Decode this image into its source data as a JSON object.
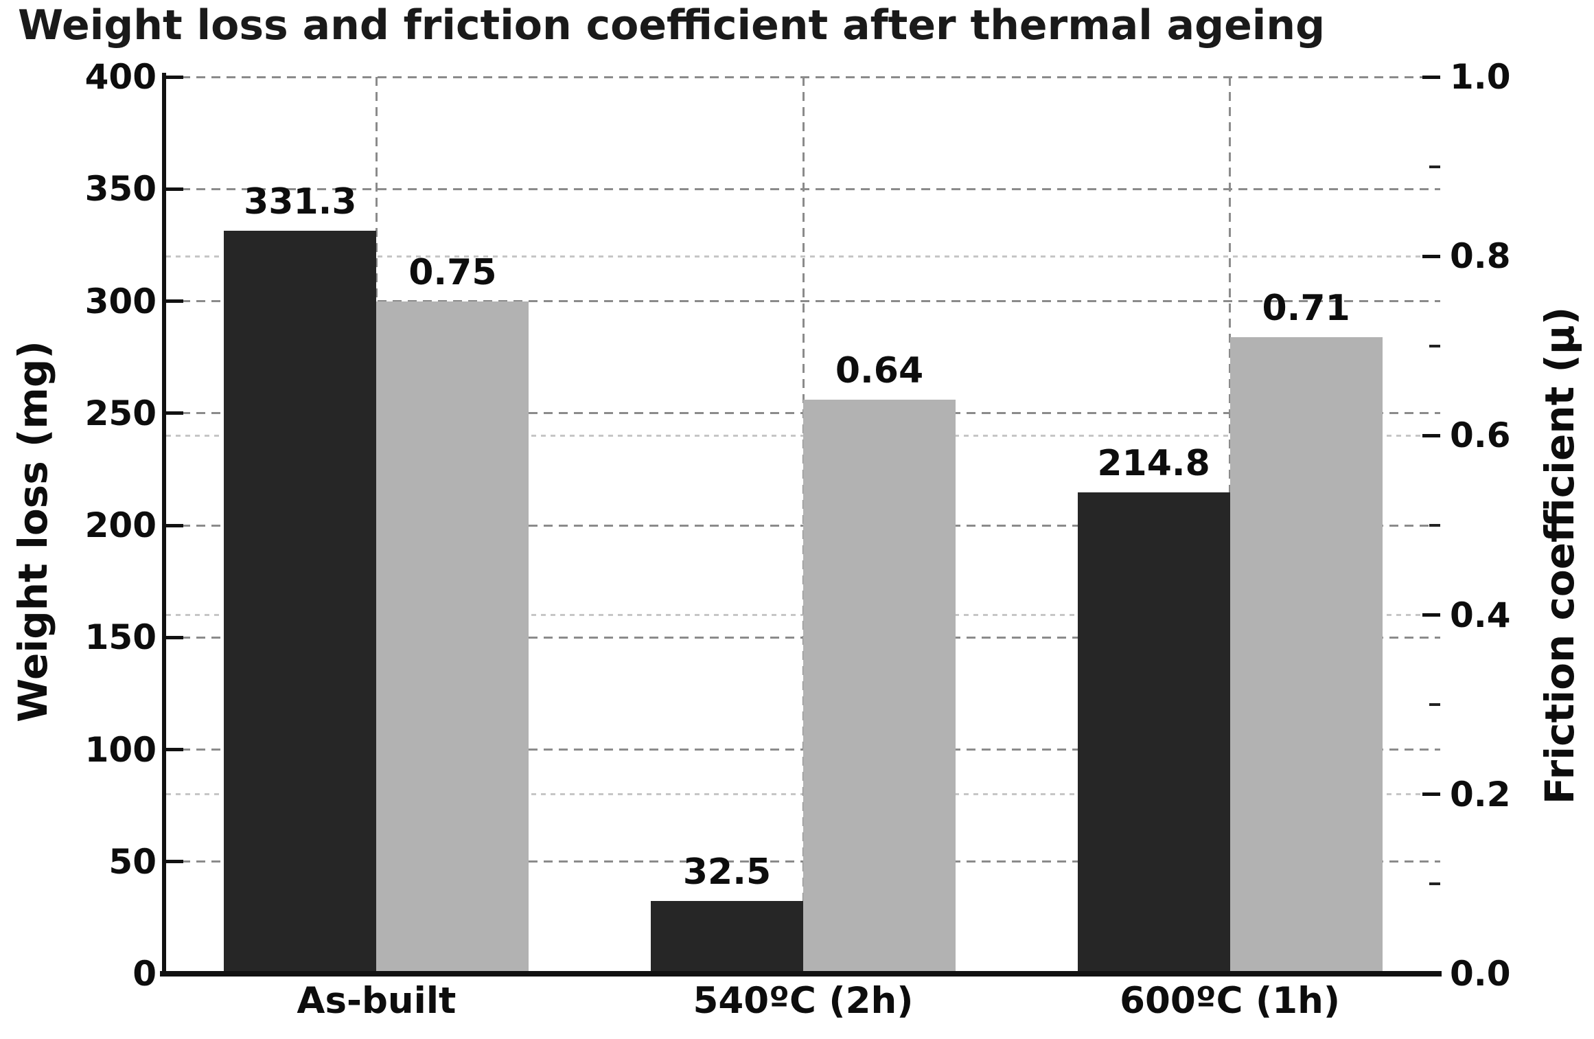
{
  "chart_data": {
    "type": "bar",
    "title": "Weight loss and friction coefficient after thermal ageing",
    "categories": [
      "As-built",
      "540ºC (2h)",
      "600ºC (1h)"
    ],
    "series": [
      {
        "name": "Weight loss",
        "axis": "left",
        "color": "#262626",
        "values": [
          331.3,
          32.5,
          214.8
        ],
        "value_labels": [
          "331.3",
          "32.5",
          "214.8"
        ]
      },
      {
        "name": "Friction coefficient",
        "axis": "right",
        "color": "#b2b2b2",
        "values": [
          0.75,
          0.64,
          0.71
        ],
        "value_labels": [
          "0.75",
          "0.64",
          "0.71"
        ]
      }
    ],
    "left_axis": {
      "label": "Weight loss (mg)",
      "range": [
        0,
        400
      ],
      "ticks": [
        0,
        50,
        100,
        150,
        200,
        250,
        300,
        350,
        400
      ],
      "tick_labels": [
        "0",
        "50",
        "100",
        "150",
        "200",
        "250",
        "300",
        "350",
        "400"
      ]
    },
    "right_axis": {
      "label": "Friction coefficient (μ)",
      "range": [
        0,
        1.0
      ],
      "ticks": [
        0.0,
        0.2,
        0.4,
        0.6,
        0.8,
        1.0
      ],
      "tick_labels": [
        "0.0",
        "0.2",
        "0.4",
        "0.6",
        "0.8",
        "1.0"
      ],
      "minor_ticks": [
        0.1,
        0.3,
        0.5,
        0.7,
        0.9
      ]
    },
    "grid": {
      "horizontal_major_at_mg": [
        50,
        100,
        150,
        200,
        250,
        300,
        350,
        400
      ],
      "horizontal_light_at_mu": [
        0.2,
        0.4,
        0.6,
        0.8
      ],
      "vertical_at_category_centers": true
    },
    "colors": {
      "background": "#ffffff",
      "dark_bar": "#262626",
      "gray_bar": "#b2b2b2",
      "major_grid": "#8b8b8b",
      "light_grid": "#c6c6c6",
      "axis": "#111111",
      "text": "#0d0d0d"
    }
  }
}
